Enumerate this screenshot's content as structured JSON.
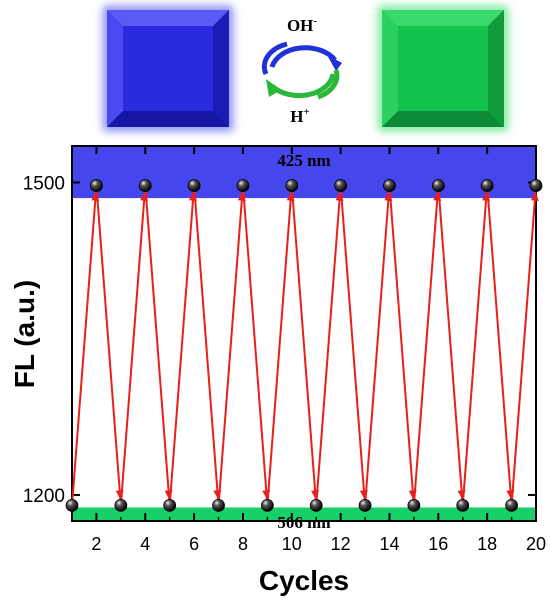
{
  "chart_data": {
    "type": "line",
    "xlabel": "Cycles",
    "ylabel": "FL (a.u.)",
    "xlim": [
      1,
      20
    ],
    "ylim": [
      1175,
      1535
    ],
    "x_ticks": [
      2,
      4,
      6,
      8,
      10,
      12,
      14,
      16,
      18,
      20
    ],
    "y_ticks": [
      1200,
      1500
    ],
    "series": [
      {
        "color": "#e8201c",
        "marker": "black-sphere",
        "x": [
          1,
          2,
          3,
          4,
          5,
          6,
          7,
          8,
          9,
          10,
          11,
          12,
          13,
          14,
          15,
          16,
          17,
          18,
          19,
          20
        ],
        "y": [
          1190,
          1497,
          1190,
          1497,
          1190,
          1497,
          1190,
          1497,
          1190,
          1497,
          1190,
          1497,
          1190,
          1497,
          1190,
          1497,
          1190,
          1497,
          1190,
          1497
        ]
      }
    ],
    "bands": [
      {
        "label": "425 nm",
        "from": 1485,
        "to": 1535,
        "color": "#4646ee"
      },
      {
        "label": "506 nm",
        "from": 1175,
        "to": 1188,
        "color": "#19cf6a"
      }
    ],
    "grid": false,
    "legend": "none"
  },
  "header": {
    "left_square_color": "#2a2adf",
    "right_square_color": "#14c24e",
    "top_label": "OH",
    "top_label_sup": "-",
    "bottom_label": "H",
    "bottom_label_sup": "+"
  }
}
